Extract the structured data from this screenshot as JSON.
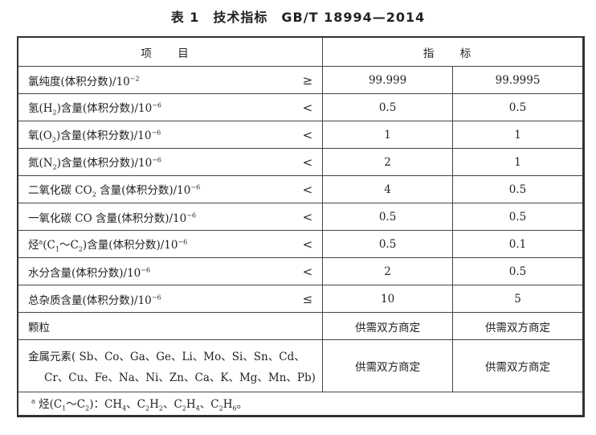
{
  "title": "表 1　技术指标　GB/T 18994—2014",
  "header": {
    "item": "项 目",
    "spec": "指 标"
  },
  "rows": [
    {
      "label": [
        {
          "t": "氯纯度(体积分数)/10"
        },
        {
          "t": "−2",
          "sup": true
        }
      ],
      "op": "≥",
      "v1": "99.999",
      "v2": "99.9995"
    },
    {
      "label": [
        {
          "t": "氢(H"
        },
        {
          "t": "2",
          "sub": true
        },
        {
          "t": ")含量(体积分数)/10"
        },
        {
          "t": "−6",
          "sup": true
        }
      ],
      "op": "<",
      "v1": "0.5",
      "v2": "0.5"
    },
    {
      "label": [
        {
          "t": "氧(O"
        },
        {
          "t": "2",
          "sub": true
        },
        {
          "t": ")含量(体积分数)/10"
        },
        {
          "t": "−6",
          "sup": true
        }
      ],
      "op": "<",
      "v1": "1",
      "v2": "1"
    },
    {
      "label": [
        {
          "t": "氮(N"
        },
        {
          "t": "2",
          "sub": true
        },
        {
          "t": ")含量(体积分数)/10"
        },
        {
          "t": "−6",
          "sup": true
        }
      ],
      "op": "<",
      "v1": "2",
      "v2": "1"
    },
    {
      "label": [
        {
          "t": "二氧化碳 CO"
        },
        {
          "t": "2",
          "sub": true
        },
        {
          "t": " 含量(体积分数)/10"
        },
        {
          "t": "−6",
          "sup": true
        }
      ],
      "op": "<",
      "v1": "4",
      "v2": "0.5"
    },
    {
      "label": [
        {
          "t": "一氧化碳 CO 含量(体积分数)/10"
        },
        {
          "t": "−6",
          "sup": true
        }
      ],
      "op": "<",
      "v1": "0.5",
      "v2": "0.5"
    },
    {
      "label": [
        {
          "t": "烃"
        },
        {
          "t": "a",
          "sup": true
        },
        {
          "t": "(C"
        },
        {
          "t": "1",
          "sub": true
        },
        {
          "t": "～C"
        },
        {
          "t": "2",
          "sub": true
        },
        {
          "t": ")含量(体积分数)/10"
        },
        {
          "t": "−6",
          "sup": true
        }
      ],
      "op": "<",
      "v1": "0.5",
      "v2": "0.1"
    },
    {
      "label": [
        {
          "t": "水分含量(体积分数)/10"
        },
        {
          "t": "−6",
          "sup": true
        }
      ],
      "op": "<",
      "v1": "2",
      "v2": "0.5"
    },
    {
      "label": [
        {
          "t": "总杂质含量(体积分数)/10"
        },
        {
          "t": "−6",
          "sup": true
        }
      ],
      "op": "≤",
      "v1": "10",
      "v2": "5"
    },
    {
      "label": [
        {
          "t": "颗粒"
        }
      ],
      "op": "",
      "v1": "供需双方商定",
      "v2": "供需双方商定"
    }
  ],
  "metals": {
    "line1": "金属元素( Sb、Co、Ga、Ge、Li、Mo、Si、Sn、Cd、",
    "line2": "Cr、Cu、Fe、Na、Ni、Zn、Ca、K、Mg、Mn、Pb)",
    "v1": "供需双方商定",
    "v2": "供需双方商定"
  },
  "footnote": [
    {
      "t": "a",
      "sup": true
    },
    {
      "t": "  烃(C"
    },
    {
      "t": "1",
      "sub": true
    },
    {
      "t": "～C"
    },
    {
      "t": "2",
      "sub": true
    },
    {
      "t": ")：CH"
    },
    {
      "t": "4",
      "sub": true
    },
    {
      "t": "、C"
    },
    {
      "t": "2",
      "sub": true
    },
    {
      "t": "H"
    },
    {
      "t": "2",
      "sub": true
    },
    {
      "t": "、C"
    },
    {
      "t": "2",
      "sub": true
    },
    {
      "t": "H"
    },
    {
      "t": "4",
      "sub": true
    },
    {
      "t": "、C"
    },
    {
      "t": "2",
      "sub": true
    },
    {
      "t": "H"
    },
    {
      "t": "6",
      "sub": true
    },
    {
      "t": "。"
    }
  ]
}
